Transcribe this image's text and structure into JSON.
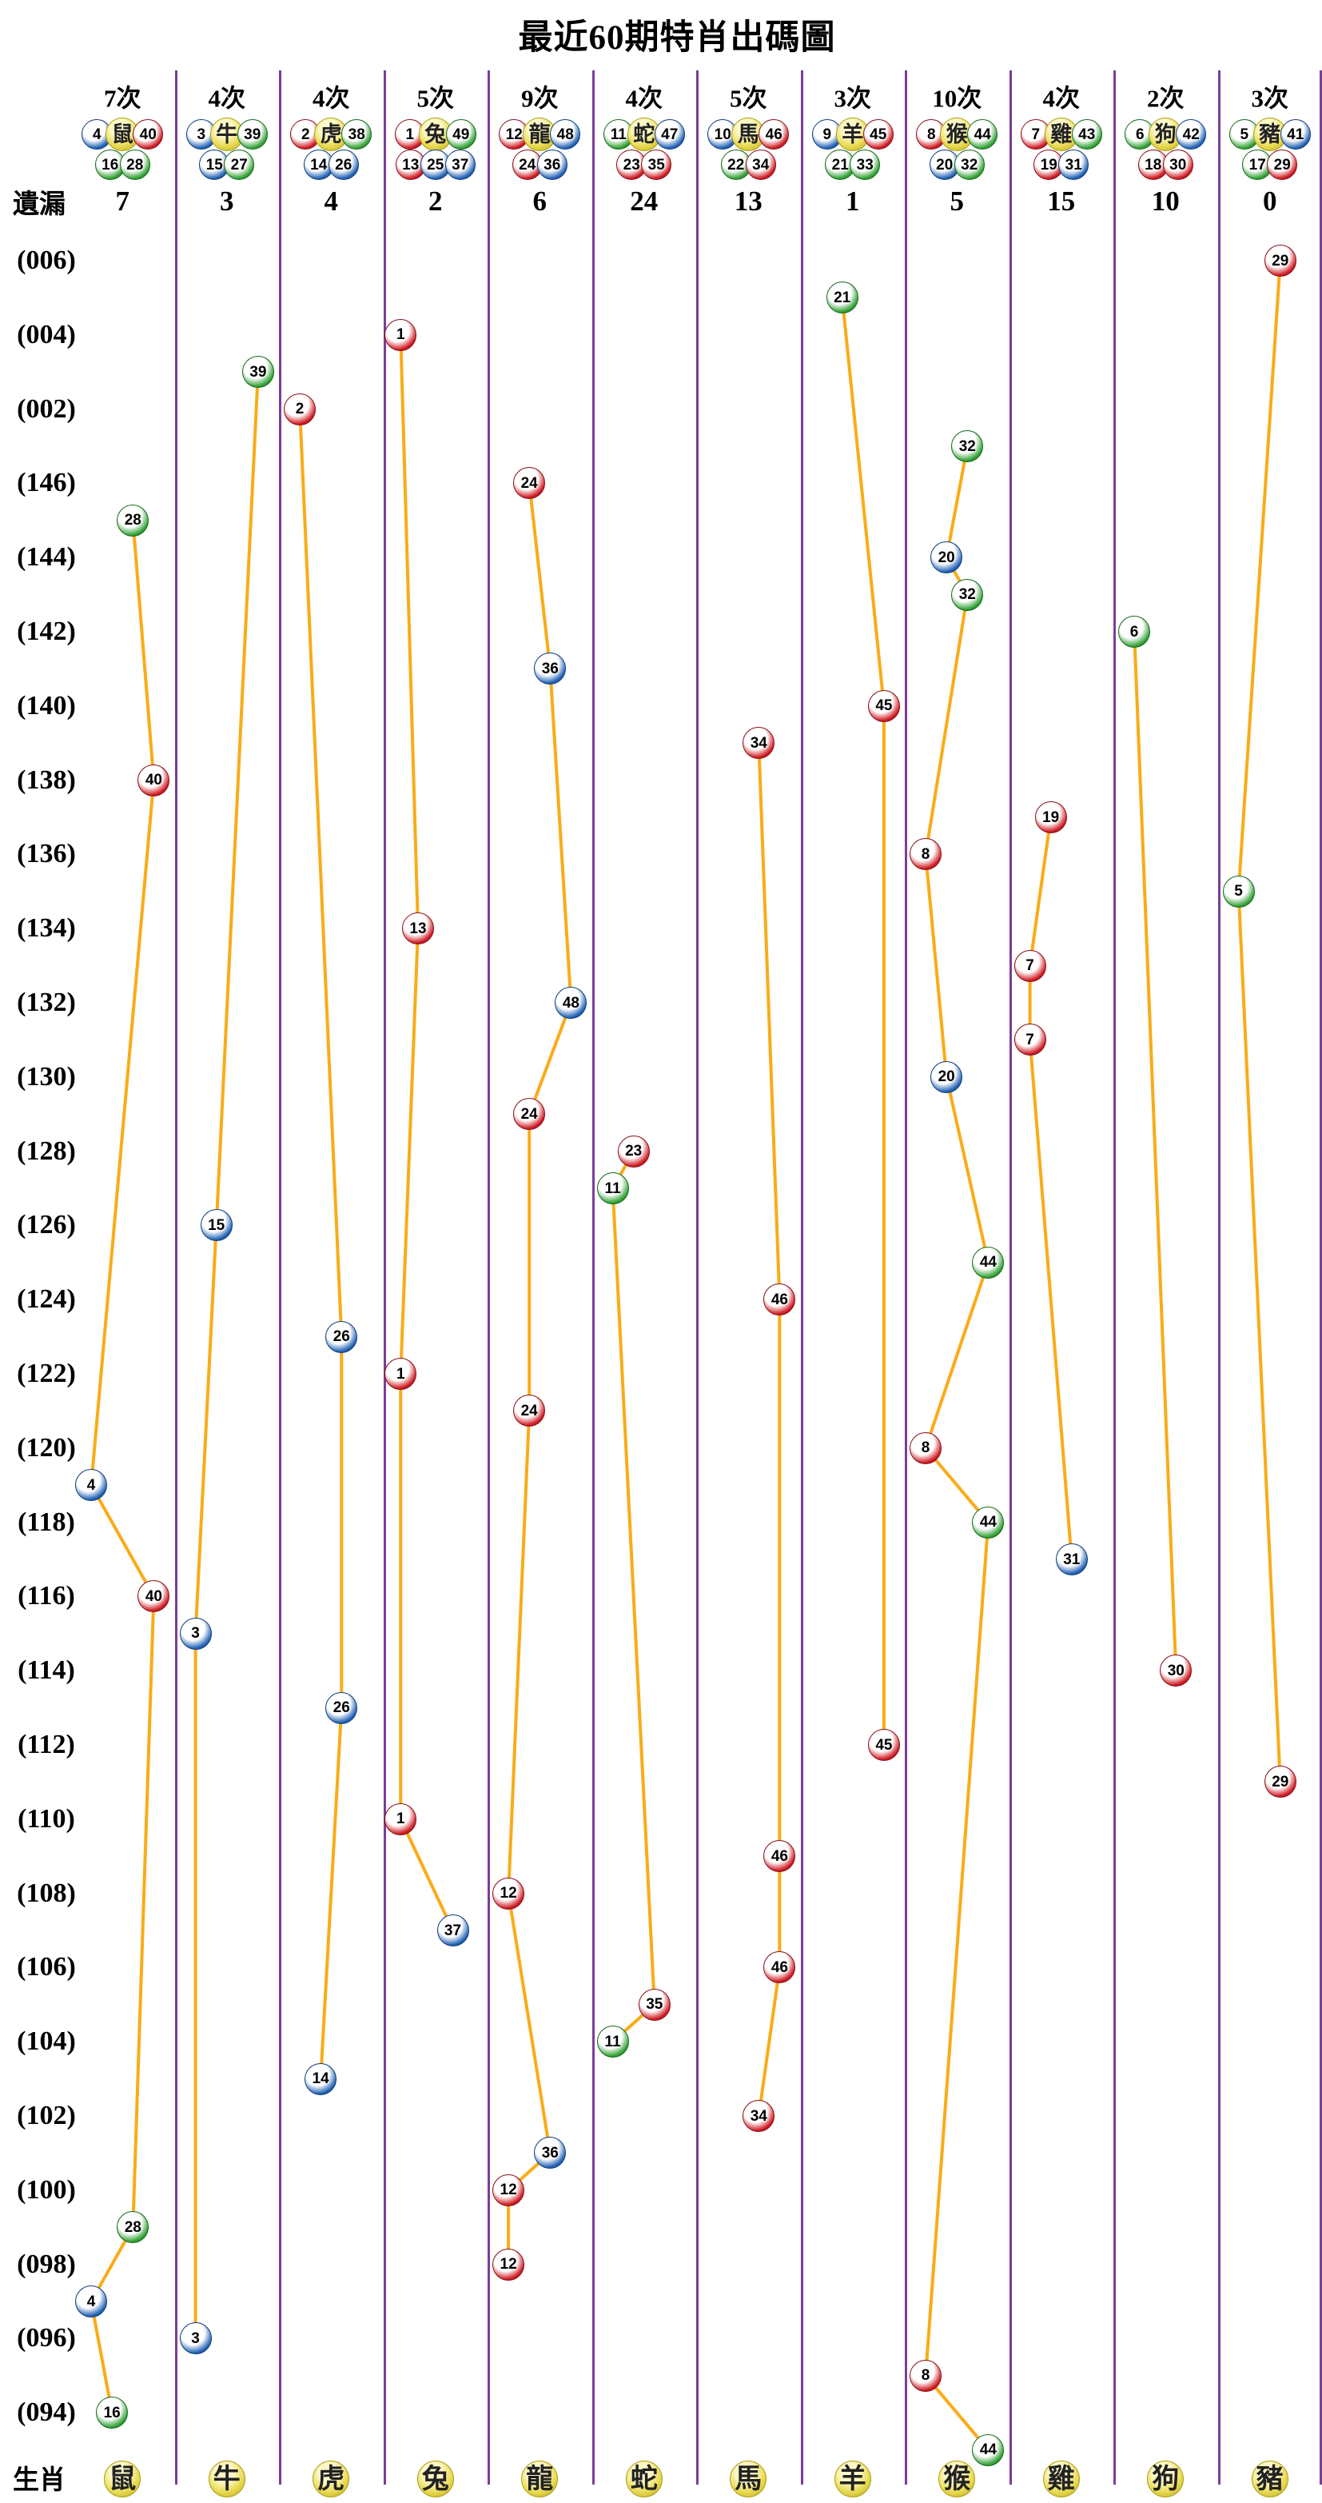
{
  "title": "最近60期特肖出碼圖",
  "corner_labels": {
    "missing": "遺漏",
    "zodiac": "生肖"
  },
  "times_suffix": "次",
  "colors": {
    "red": "#cf1b23",
    "red_dark": "#871018",
    "blue": "#2363b4",
    "blue_dark": "#0f3d7e",
    "green": "#33a136",
    "green_dark": "#14691c",
    "yellow": "#e9da52",
    "yellow_dark": "#b0a218",
    "line": "#fbab18",
    "separator": "#7b3d9a",
    "text": "#000000"
  },
  "chart_data": {
    "type": "scatter",
    "title": "最近60期特肖出碼圖",
    "xlabel": "生肖",
    "ylabel": "期號",
    "grid": "vertical-separators",
    "y_tick_labels": [
      "(006)",
      "(004)",
      "(002)",
      "(146)",
      "(144)",
      "(142)",
      "(140)",
      "(138)",
      "(136)",
      "(134)",
      "(132)",
      "(130)",
      "(128)",
      "(126)",
      "(124)",
      "(122)",
      "(120)",
      "(118)",
      "(116)",
      "(114)",
      "(112)",
      "(110)",
      "(108)",
      "(106)",
      "(104)",
      "(102)",
      "(100)",
      "(098)",
      "(096)",
      "(094)"
    ],
    "period_rows": [
      "006",
      "005",
      "004",
      "003",
      "002",
      "001",
      "146",
      "145",
      "144",
      "143",
      "142",
      "141",
      "140",
      "139",
      "138",
      "137",
      "136",
      "135",
      "134",
      "133",
      "132",
      "131",
      "130",
      "129",
      "128",
      "127",
      "126",
      "125",
      "124",
      "123",
      "122",
      "121",
      "120",
      "119",
      "118",
      "117",
      "116",
      "115",
      "114",
      "113",
      "112",
      "111",
      "110",
      "109",
      "108",
      "107",
      "106",
      "105",
      "104",
      "103",
      "102",
      "101",
      "100",
      "099",
      "098",
      "097",
      "096",
      "095",
      "094",
      "093"
    ],
    "number_colors": {
      "red": [
        1,
        2,
        7,
        8,
        12,
        13,
        18,
        19,
        23,
        24,
        29,
        30,
        34,
        35,
        40,
        45,
        46
      ],
      "blue": [
        3,
        4,
        9,
        10,
        14,
        15,
        20,
        25,
        26,
        31,
        36,
        37,
        41,
        42,
        47,
        48
      ],
      "green": [
        5,
        6,
        11,
        16,
        17,
        21,
        22,
        27,
        28,
        32,
        33,
        38,
        39,
        43,
        44,
        49
      ]
    },
    "columns": [
      {
        "zodiac": "鼠",
        "times": 7,
        "missing": 7,
        "numbers": [
          4,
          16,
          28,
          40
        ],
        "points": [
          {
            "period": "145",
            "n": 28
          },
          {
            "period": "138",
            "n": 40
          },
          {
            "period": "119",
            "n": 4
          },
          {
            "period": "116",
            "n": 40
          },
          {
            "period": "099",
            "n": 28
          },
          {
            "period": "097",
            "n": 4
          },
          {
            "period": "094",
            "n": 16
          }
        ]
      },
      {
        "zodiac": "牛",
        "times": 4,
        "missing": 3,
        "numbers": [
          3,
          15,
          27,
          39
        ],
        "points": [
          {
            "period": "003",
            "n": 39
          },
          {
            "period": "126",
            "n": 15
          },
          {
            "period": "115",
            "n": 3
          },
          {
            "period": "096",
            "n": 3
          }
        ]
      },
      {
        "zodiac": "虎",
        "times": 4,
        "missing": 4,
        "numbers": [
          2,
          14,
          26,
          38
        ],
        "points": [
          {
            "period": "002",
            "n": 2
          },
          {
            "period": "123",
            "n": 26
          },
          {
            "period": "113",
            "n": 26
          },
          {
            "period": "103",
            "n": 14
          }
        ]
      },
      {
        "zodiac": "兔",
        "times": 5,
        "missing": 2,
        "numbers": [
          1,
          13,
          25,
          37,
          49
        ],
        "points": [
          {
            "period": "004",
            "n": 1
          },
          {
            "period": "134",
            "n": 13
          },
          {
            "period": "122",
            "n": 1
          },
          {
            "period": "110",
            "n": 1
          },
          {
            "period": "107",
            "n": 37
          }
        ]
      },
      {
        "zodiac": "龍",
        "times": 9,
        "missing": 6,
        "numbers": [
          12,
          24,
          36,
          48
        ],
        "points": [
          {
            "period": "146",
            "n": 24
          },
          {
            "period": "141",
            "n": 36
          },
          {
            "period": "132",
            "n": 48
          },
          {
            "period": "129",
            "n": 24
          },
          {
            "period": "121",
            "n": 24
          },
          {
            "period": "108",
            "n": 12
          },
          {
            "period": "101",
            "n": 36
          },
          {
            "period": "100",
            "n": 12
          },
          {
            "period": "098",
            "n": 12
          }
        ]
      },
      {
        "zodiac": "蛇",
        "times": 4,
        "missing": 24,
        "numbers": [
          11,
          23,
          35,
          47
        ],
        "points": [
          {
            "period": "128",
            "n": 23
          },
          {
            "period": "127",
            "n": 11
          },
          {
            "period": "105",
            "n": 35
          },
          {
            "period": "104",
            "n": 11
          }
        ]
      },
      {
        "zodiac": "馬",
        "times": 5,
        "missing": 13,
        "numbers": [
          10,
          22,
          34,
          46
        ],
        "points": [
          {
            "period": "139",
            "n": 34
          },
          {
            "period": "124",
            "n": 46
          },
          {
            "period": "109",
            "n": 46
          },
          {
            "period": "106",
            "n": 46
          },
          {
            "period": "102",
            "n": 34
          }
        ]
      },
      {
        "zodiac": "羊",
        "times": 3,
        "missing": 1,
        "numbers": [
          9,
          21,
          33,
          45
        ],
        "points": [
          {
            "period": "005",
            "n": 21
          },
          {
            "period": "140",
            "n": 45
          },
          {
            "period": "112",
            "n": 45
          }
        ]
      },
      {
        "zodiac": "猴",
        "times": 10,
        "missing": 5,
        "numbers": [
          8,
          20,
          32,
          44
        ],
        "points": [
          {
            "period": "001",
            "n": 32
          },
          {
            "period": "144",
            "n": 20
          },
          {
            "period": "143",
            "n": 32
          },
          {
            "period": "136",
            "n": 8
          },
          {
            "period": "130",
            "n": 20
          },
          {
            "period": "125",
            "n": 44
          },
          {
            "period": "120",
            "n": 8
          },
          {
            "period": "118",
            "n": 44
          },
          {
            "period": "095",
            "n": 8
          },
          {
            "period": "093",
            "n": 44
          }
        ]
      },
      {
        "zodiac": "雞",
        "times": 4,
        "missing": 15,
        "numbers": [
          7,
          19,
          31,
          43
        ],
        "points": [
          {
            "period": "137",
            "n": 19
          },
          {
            "period": "133",
            "n": 7
          },
          {
            "period": "131",
            "n": 7
          },
          {
            "period": "117",
            "n": 31
          }
        ]
      },
      {
        "zodiac": "狗",
        "times": 2,
        "missing": 10,
        "numbers": [
          6,
          18,
          30,
          42
        ],
        "points": [
          {
            "period": "142",
            "n": 6
          },
          {
            "period": "114",
            "n": 30
          }
        ]
      },
      {
        "zodiac": "豬",
        "times": 3,
        "missing": 0,
        "numbers": [
          5,
          17,
          29,
          41
        ],
        "points": [
          {
            "period": "006",
            "n": 29
          },
          {
            "period": "135",
            "n": 5
          },
          {
            "period": "111",
            "n": 29
          }
        ]
      }
    ]
  }
}
